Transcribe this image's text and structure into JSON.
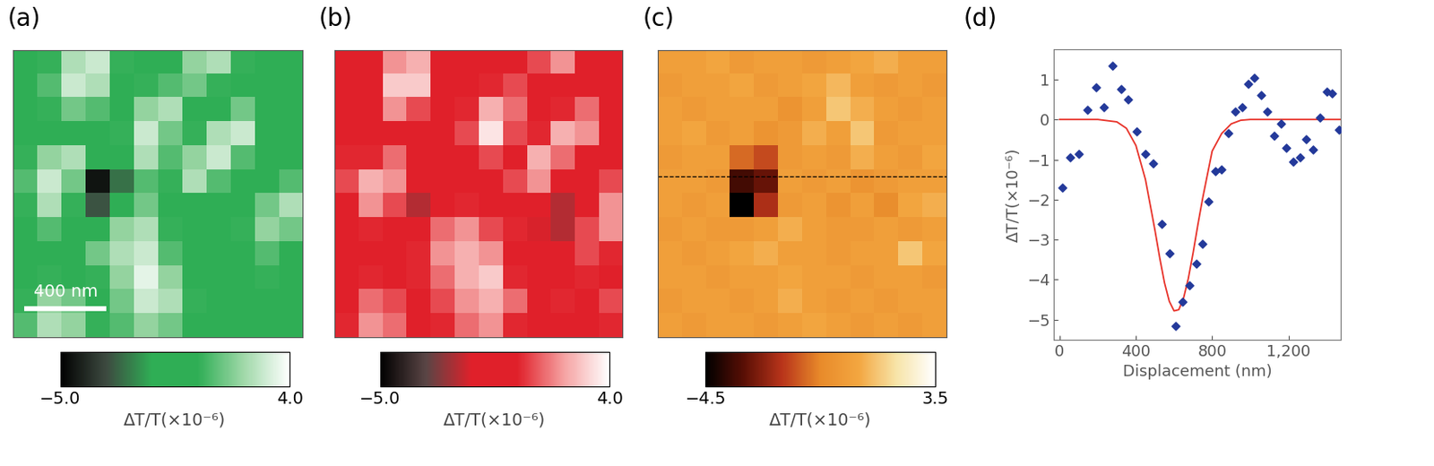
{
  "chart_data": [
    {
      "type": "heatmap",
      "title": "(a)",
      "map_size": 1410,
      "tick_labels": false,
      "colors": [
        "#000000",
        "#3d4a40",
        "#2fae55",
        "#2fae55",
        "#9fd8a8",
        "#ffffff"
      ],
      "scale_bar": {
        "length": 400,
        "label": "400 nm"
      },
      "colorbar": {
        "range": [
          -5,
          4
        ],
        "ticks": [
          {
            "value": -5,
            "label": "−5.0"
          },
          {
            "value": 4,
            "label": "4.0"
          }
        ],
        "label": "ΔT/T(×10⁻⁶)"
      },
      "cells": [
        [
          0,
          0.5,
          2.5,
          3,
          0.5,
          0,
          0,
          2,
          2.5,
          0.5,
          0,
          0
        ],
        [
          0,
          1,
          3,
          2.5,
          0,
          0.5,
          1,
          1.5,
          0.5,
          0,
          -0.5,
          0
        ],
        [
          0,
          0.5,
          1.5,
          1,
          0,
          2,
          2.5,
          0,
          0,
          1.5,
          0,
          0
        ],
        [
          0,
          0,
          0,
          0,
          0.5,
          3,
          1.5,
          0.5,
          2.5,
          3,
          0,
          0
        ],
        [
          0.5,
          2,
          2.5,
          -1,
          -1,
          2.5,
          1,
          2,
          3,
          1,
          0,
          0
        ],
        [
          1,
          3,
          1.5,
          -4.5,
          -2.5,
          1,
          0.5,
          2.5,
          1,
          0,
          0,
          1
        ],
        [
          0.5,
          2.5,
          0.5,
          -3,
          -1,
          1.5,
          0,
          0,
          0,
          0,
          1.5,
          2.5
        ],
        [
          0,
          1,
          0,
          0,
          2,
          2.5,
          0.5,
          0,
          0,
          0.5,
          2,
          1.5
        ],
        [
          0,
          0,
          0,
          1.5,
          2.5,
          3,
          1,
          -0.5,
          0,
          0,
          1,
          0
        ],
        [
          0,
          0.5,
          0,
          0.5,
          2,
          3.5,
          2,
          0,
          0,
          0,
          0.5,
          0
        ],
        [
          0.5,
          2,
          1.5,
          0,
          1.5,
          3,
          2.5,
          0.5,
          -0.5,
          0,
          0,
          0
        ],
        [
          1,
          2.5,
          2,
          0.5,
          1,
          2,
          1.5,
          0,
          0,
          -0.5,
          0,
          0
        ]
      ]
    },
    {
      "type": "heatmap",
      "title": "(b)",
      "map_size": 1410,
      "tick_labels": false,
      "colors": [
        "#000000",
        "#5a4545",
        "#e0202a",
        "#e0202a",
        "#f5a0a0",
        "#ffffff"
      ],
      "colorbar": {
        "range": [
          -5,
          4
        ],
        "ticks": [
          {
            "value": -5,
            "label": "−5.0"
          },
          {
            "value": 4,
            "label": "4.0"
          }
        ],
        "label": "ΔT/T(×10⁻⁶)"
      },
      "cells": [
        [
          -0.5,
          0,
          2,
          2.5,
          0,
          -1,
          -0.5,
          0,
          1,
          2,
          0,
          0
        ],
        [
          -1,
          -0.5,
          3,
          3,
          -0.5,
          -1,
          0.5,
          1,
          0,
          0,
          -0.5,
          0
        ],
        [
          0,
          0,
          2,
          1,
          0,
          0.5,
          2.5,
          1.5,
          0,
          0.5,
          1.5,
          0
        ],
        [
          0,
          -1,
          0,
          -1,
          0,
          1,
          3.5,
          1,
          0.5,
          2.5,
          2,
          0
        ],
        [
          0.5,
          0.5,
          1.5,
          -0.5,
          -0.5,
          0,
          1,
          -0.5,
          2.5,
          1.5,
          0,
          0
        ],
        [
          1,
          2.5,
          2,
          -1,
          -1,
          0,
          0,
          1,
          2,
          0,
          0,
          1
        ],
        [
          0,
          2,
          1,
          -2,
          0,
          0.5,
          -0.5,
          0,
          -0.5,
          -2,
          0,
          2
        ],
        [
          0,
          0.5,
          0,
          0,
          1.5,
          2,
          1,
          0.5,
          -1.5,
          -2,
          1,
          2
        ],
        [
          -0.5,
          0,
          -1,
          0.5,
          2,
          2.5,
          2,
          0,
          -0.5,
          0,
          1,
          0.5
        ],
        [
          0,
          0.5,
          -1,
          0.5,
          1.5,
          2.5,
          3,
          0.5,
          0,
          0,
          0.5,
          0
        ],
        [
          0,
          1.5,
          1,
          0,
          1,
          2,
          2.5,
          1.5,
          0,
          0.5,
          0,
          1
        ],
        [
          0.5,
          2,
          1.5,
          0,
          0.5,
          1.5,
          2,
          0.5,
          0,
          0,
          0,
          0.5
        ]
      ]
    },
    {
      "type": "heatmap",
      "title": "(c)",
      "map_size": 1410,
      "tick_labels": false,
      "line_cut_y": 620,
      "colors": [
        "#000000",
        "#5a0f05",
        "#b8341a",
        "#e88a2a",
        "#f3a640",
        "#f7e4a8",
        "#ffffff"
      ],
      "colorbar": {
        "range": [
          -4.5,
          3.5
        ],
        "ticks": [
          {
            "value": -4.5,
            "label": "−4.5"
          },
          3.5
        ],
        "label": "ΔT/T(×10⁻⁶)"
      },
      "cells": [
        [
          0.5,
          0.5,
          0.8,
          0.3,
          0.5,
          0.5,
          0.3,
          0.5,
          0.8,
          1.0,
          0.5,
          0.5
        ],
        [
          0.3,
          0.5,
          0.5,
          0.8,
          0.3,
          0.5,
          0.8,
          1.2,
          0.5,
          0.3,
          0.5,
          0.3
        ],
        [
          0.5,
          0.3,
          0.5,
          0.5,
          0.5,
          0,
          0.5,
          1.5,
          1.0,
          0.5,
          0.3,
          0.5
        ],
        [
          0.5,
          0.8,
          0.3,
          0.5,
          0,
          0.3,
          1.0,
          0.5,
          1.5,
          0.3,
          0.5,
          0.5
        ],
        [
          0.3,
          0.5,
          0.5,
          -1.0,
          -1.5,
          0.3,
          0.5,
          0.3,
          1.0,
          0.5,
          0.3,
          0.8
        ],
        [
          0.5,
          0.5,
          0.3,
          -3.5,
          -3.0,
          0.5,
          0.3,
          0.5,
          0,
          0.3,
          0.5,
          0.5
        ],
        [
          0.5,
          0.3,
          0.5,
          -4.5,
          -2.0,
          0.3,
          0.5,
          0,
          0.5,
          -0.3,
          0.8,
          1.0
        ],
        [
          0.3,
          0.5,
          0.3,
          0.3,
          0.5,
          1.0,
          0.5,
          0.3,
          0.3,
          0.5,
          0.3,
          0.5
        ],
        [
          0.5,
          0.3,
          0.5,
          0.8,
          1.0,
          0.5,
          0.5,
          0.3,
          0.5,
          0.5,
          1.5,
          0.8
        ],
        [
          0.5,
          0.5,
          0.3,
          0.5,
          0.5,
          0.8,
          0.5,
          0.5,
          0.3,
          0.5,
          0.5,
          0.3
        ],
        [
          0.3,
          0.5,
          0.5,
          0.3,
          0.5,
          1.0,
          0.5,
          0.3,
          0.5,
          0.3,
          0.5,
          0.5
        ],
        [
          0.5,
          0.3,
          0.5,
          0.5,
          0.3,
          0.5,
          0.8,
          0.5,
          0.3,
          0.5,
          0.3,
          0.5
        ]
      ]
    },
    {
      "type": "scatter",
      "title": "(d)",
      "x_label": "Displacement (nm)",
      "y_label": "ΔT/T(×10⁻⁶)",
      "xlim": [
        -30,
        1475
      ],
      "xticks": [
        0,
        400,
        800,
        {
          "value": 1200,
          "label": "1,200"
        }
      ],
      "ylim": [
        -5.5,
        1.75
      ],
      "yticks": [
        {
          "value": -5,
          "label": "−5"
        },
        {
          "value": -4,
          "label": "−4"
        },
        {
          "value": -3,
          "label": "−3"
        },
        {
          "value": -2,
          "label": "−2"
        },
        {
          "value": -1,
          "label": "−1"
        },
        0,
        1
      ],
      "series": [
        {
          "type": "scatter",
          "color": "#23399a",
          "marker": "diamond",
          "x": [
            13,
            55,
            100,
            145,
            190,
            230,
            275,
            320,
            360,
            405,
            450,
            490,
            535,
            578,
            610,
            645,
            680,
            715,
            750,
            780,
            815,
            850,
            885,
            920,
            955,
            990,
            1020,
            1055,
            1090,
            1125,
            1160,
            1190,
            1225,
            1260,
            1295,
            1330,
            1365,
            1400,
            1430,
            1465
          ],
          "values": [
            -1.7,
            -0.95,
            -0.85,
            0.25,
            0.8,
            0.3,
            1.35,
            0.75,
            0.5,
            -0.3,
            -0.85,
            -1.1,
            -2.6,
            -3.35,
            -5.15,
            -4.55,
            -4.15,
            -3.6,
            -3.1,
            -2.05,
            -1.3,
            -1.25,
            -0.35,
            0.2,
            0.3,
            0.9,
            1.05,
            0.6,
            0.2,
            -0.4,
            -0.1,
            -0.7,
            -1.05,
            -0.95,
            -0.5,
            -0.75,
            0.05,
            0.7,
            0.65,
            -0.25
          ]
        },
        {
          "type": "line",
          "color": "#e8332a",
          "x": [
            0,
            100,
            200,
            300,
            350,
            400,
            450,
            500,
            525,
            550,
            575,
            600,
            625,
            650,
            675,
            700,
            725,
            750,
            800,
            850,
            900,
            950,
            1000,
            1100,
            1200,
            1300,
            1400,
            1475
          ],
          "values": [
            0,
            0,
            0,
            -0.06,
            -0.22,
            -0.65,
            -1.5,
            -2.77,
            -3.46,
            -4.08,
            -4.54,
            -4.78,
            -4.75,
            -4.46,
            -3.97,
            -3.33,
            -2.63,
            -1.97,
            -0.79,
            -0.35,
            -0.11,
            -0.02,
            0,
            0,
            0,
            0,
            0,
            0
          ]
        }
      ]
    }
  ]
}
